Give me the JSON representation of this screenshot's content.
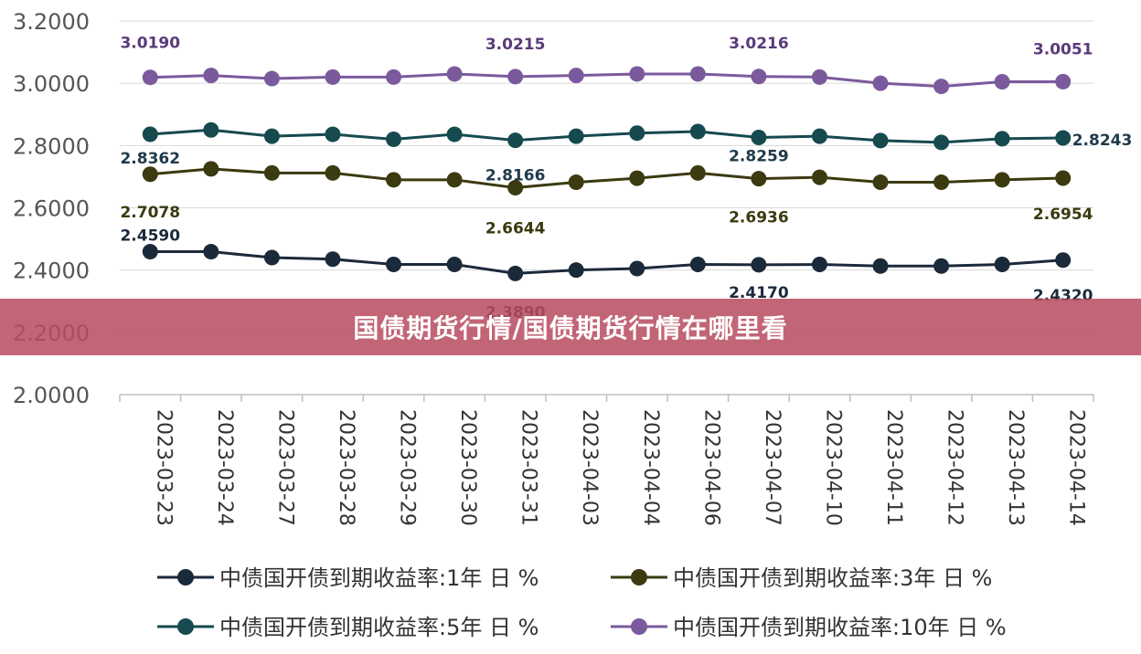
{
  "banner": {
    "title": "国债期货行情/国债期货行情在哪里看"
  },
  "chart_data": {
    "type": "line",
    "title": "",
    "xlabel": "",
    "ylabel": "",
    "ylim": [
      2.0,
      3.2
    ],
    "yticks": [
      "2.0000",
      "2.2000",
      "2.4000",
      "2.6000",
      "2.8000",
      "3.0000",
      "3.2000"
    ],
    "grid": "horizontal",
    "legend_position": "bottom",
    "categories": [
      "2023-03-23",
      "2023-03-24",
      "2023-03-27",
      "2023-03-28",
      "2023-03-29",
      "2023-03-30",
      "2023-03-31",
      "2023-04-03",
      "2023-04-04",
      "2023-04-06",
      "2023-04-07",
      "2023-04-10",
      "2023-04-11",
      "2023-04-12",
      "2023-04-13",
      "2023-04-14"
    ],
    "series": [
      {
        "name": "中债国开债到期收益率:1年 日 %",
        "color": "#1b2a3a",
        "values": [
          2.459,
          2.459,
          2.44,
          2.435,
          2.418,
          2.418,
          2.389,
          2.4,
          2.405,
          2.418,
          2.417,
          2.418,
          2.413,
          2.413,
          2.418,
          2.432
        ],
        "labels": [
          {
            "index": 0,
            "text": "2.4590"
          },
          {
            "index": 6,
            "text": "2.3890"
          },
          {
            "index": 10,
            "text": "2.4170"
          },
          {
            "index": 15,
            "text": "2.4320"
          }
        ]
      },
      {
        "name": "中债国开债到期收益率:3年 日 %",
        "color": "#3b3a10",
        "values": [
          2.7078,
          2.725,
          2.712,
          2.712,
          2.69,
          2.69,
          2.6644,
          2.682,
          2.695,
          2.712,
          2.6936,
          2.698,
          2.682,
          2.682,
          2.69,
          2.6954
        ],
        "labels": [
          {
            "index": 0,
            "text": "2.7078"
          },
          {
            "index": 6,
            "text": "2.6644"
          },
          {
            "index": 10,
            "text": "2.6936"
          },
          {
            "index": 15,
            "text": "2.6954"
          }
        ]
      },
      {
        "name": "中债国开债到期收益率:5年 日 %",
        "color": "#164a4f",
        "values": [
          2.8362,
          2.85,
          2.83,
          2.836,
          2.82,
          2.836,
          2.8166,
          2.83,
          2.84,
          2.845,
          2.8259,
          2.83,
          2.816,
          2.81,
          2.822,
          2.8243
        ],
        "labels": [
          {
            "index": 0,
            "text": "2.8362"
          },
          {
            "index": 6,
            "text": "2.8166"
          },
          {
            "index": 10,
            "text": "2.8259"
          },
          {
            "index": 15,
            "text": "2.8243"
          }
        ]
      },
      {
        "name": "中债国开债到期收益率:10年 日 %",
        "color": "#7a5a9c",
        "values": [
          3.019,
          3.025,
          3.015,
          3.02,
          3.02,
          3.03,
          3.0215,
          3.025,
          3.03,
          3.03,
          3.0216,
          3.02,
          3.0,
          2.99,
          3.005,
          3.0051
        ],
        "labels": [
          {
            "index": 0,
            "text": "3.0190"
          },
          {
            "index": 6,
            "text": "3.0215"
          },
          {
            "index": 10,
            "text": "3.0216"
          },
          {
            "index": 15,
            "text": "3.0051"
          }
        ]
      }
    ]
  }
}
